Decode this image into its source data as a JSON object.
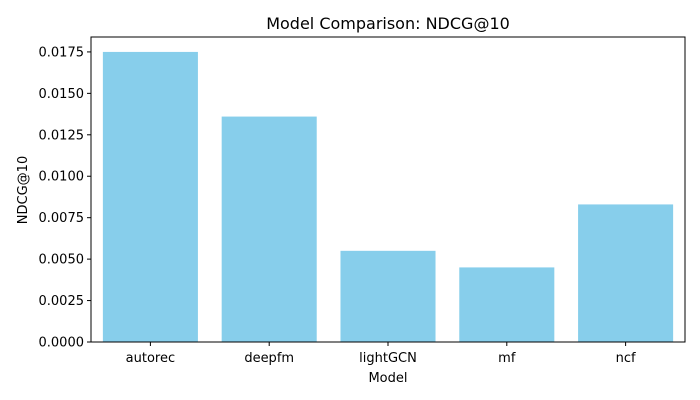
{
  "chart_data": {
    "type": "bar",
    "title": "Model Comparison: NDCG@10",
    "xlabel": "Model",
    "ylabel": "NDCG@10",
    "categories": [
      "autorec",
      "deepfm",
      "lightGCN",
      "mf",
      "ncf"
    ],
    "values": [
      0.0175,
      0.0136,
      0.0055,
      0.0045,
      0.0083
    ],
    "ylim": [
      0,
      0.0184
    ],
    "yticks": [
      "0.0000",
      "0.0025",
      "0.0050",
      "0.0075",
      "0.0100",
      "0.0125",
      "0.0150",
      "0.0175"
    ],
    "bar_color": "#87CEEB",
    "grid": false,
    "legend": "none"
  }
}
